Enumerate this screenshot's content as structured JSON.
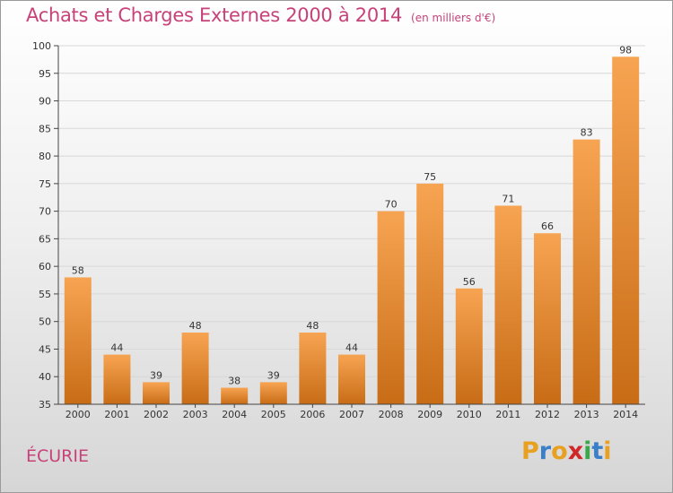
{
  "title": "Achats et Charges Externes 2000 à 2014",
  "unit_label": "(en milliers d'€)",
  "commune": "ÉCURIE",
  "logo": {
    "text": "Proxiti",
    "letter_colors": [
      "#e8a020",
      "#3a7fc8",
      "#e8a020",
      "#d02828",
      "#3aa84a",
      "#3a7fc8",
      "#e8a020"
    ]
  },
  "colors": {
    "title": "#c8427a",
    "bar_top": "#f7a452",
    "bar_bottom": "#c86c16",
    "axis": "#444444",
    "grid": "#d8d8d8"
  },
  "chart_data": {
    "type": "bar",
    "title": "Achats et Charges Externes 2000 à 2014",
    "subtitle": "(en milliers d'€)",
    "xlabel": "",
    "ylabel": "",
    "categories": [
      "2000",
      "2001",
      "2002",
      "2003",
      "2004",
      "2005",
      "2006",
      "2007",
      "2008",
      "2009",
      "2010",
      "2011",
      "2012",
      "2013",
      "2014"
    ],
    "values": [
      58,
      44,
      39,
      48,
      38,
      39,
      48,
      44,
      70,
      75,
      56,
      71,
      66,
      83,
      98
    ],
    "ylim": [
      35,
      100
    ],
    "yticks": [
      35,
      40,
      45,
      50,
      55,
      60,
      65,
      70,
      75,
      80,
      85,
      90,
      95,
      100
    ],
    "grid": true,
    "legend": "none"
  }
}
